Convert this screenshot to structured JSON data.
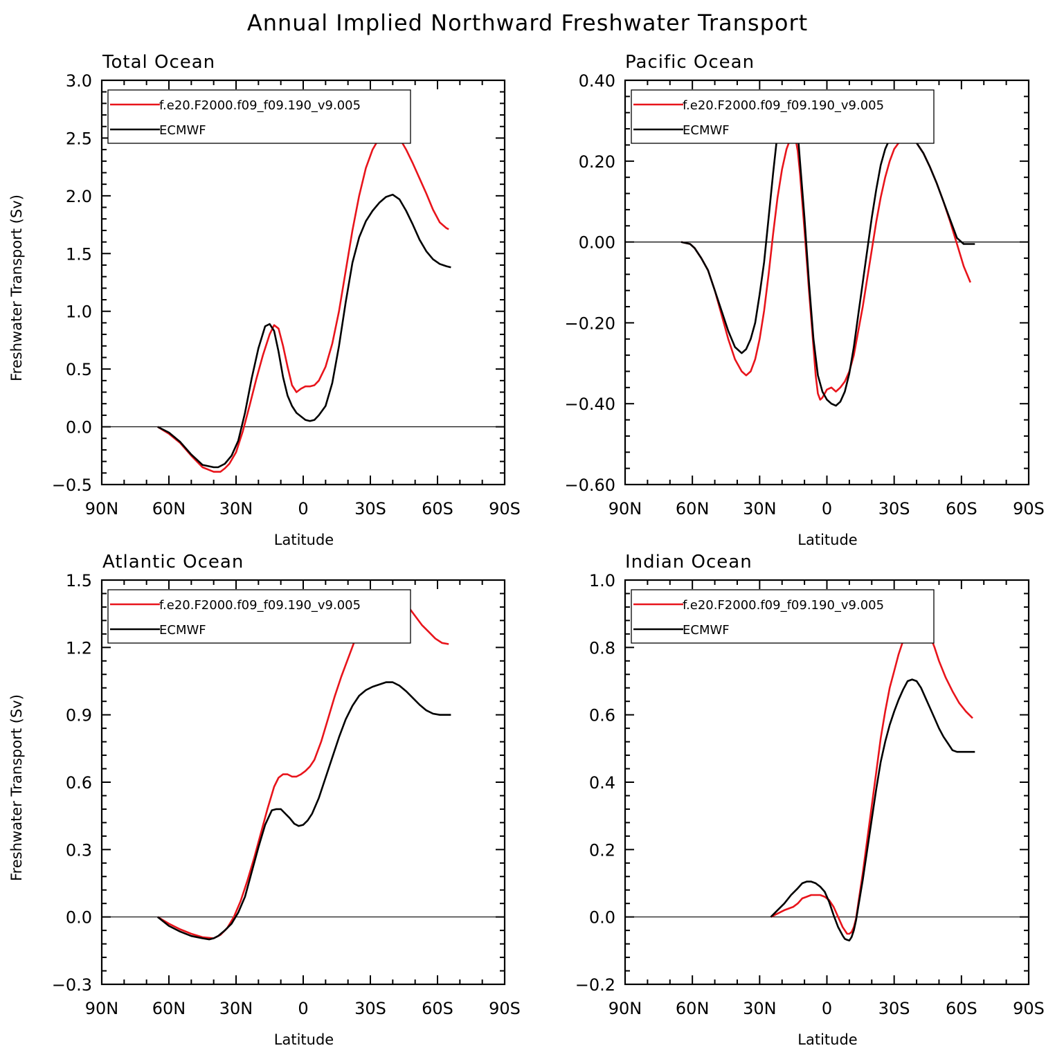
{
  "figure": {
    "title": "Annual Implied Northward Freshwater Transport",
    "legend": [
      "f.e20.F2000.f09_f09.190_v9.005",
      "ECMWF"
    ],
    "colors": {
      "model": "#e8141b",
      "ecmwf": "#000000",
      "axes": "#000000"
    }
  },
  "chart_data": [
    {
      "type": "line",
      "title": "Total Ocean",
      "xlabel": "Latitude",
      "ylabel": "Freshwater Transport (Sv)",
      "xlim": [
        -90,
        90
      ],
      "ylim": [
        -0.5,
        3.0
      ],
      "xticks": [
        -90,
        -60,
        -30,
        0,
        30,
        60,
        90
      ],
      "xtick_labels": [
        "90N",
        "60N",
        "30N",
        "0",
        "30S",
        "60S",
        "90S"
      ],
      "yticks": [
        -0.5,
        0.0,
        0.5,
        1.0,
        1.5,
        2.0,
        2.5,
        3.0
      ],
      "ytick_labels": [
        "−0.5",
        "0.0",
        "0.5",
        "1.0",
        "1.5",
        "2.0",
        "2.5",
        "3.0"
      ],
      "legend_position": "top-left",
      "series": [
        {
          "name": "f.e20.F2000.f09_f09.190_v9.005",
          "color": "#e8141b",
          "x": [
            -65,
            -60,
            -55,
            -50,
            -45,
            -40,
            -37,
            -35,
            -33,
            -30,
            -27,
            -24,
            -21,
            -18,
            -15,
            -13,
            -11,
            -9,
            -7,
            -5,
            -3,
            -1,
            1,
            3,
            5,
            7,
            10,
            13,
            16,
            19,
            22,
            25,
            28,
            31,
            34,
            37,
            40,
            43,
            46,
            49,
            52,
            55,
            58,
            61,
            64,
            65
          ],
          "y": [
            0.0,
            -0.06,
            -0.14,
            -0.25,
            -0.35,
            -0.39,
            -0.39,
            -0.36,
            -0.32,
            -0.22,
            -0.04,
            0.18,
            0.41,
            0.62,
            0.8,
            0.88,
            0.85,
            0.7,
            0.52,
            0.36,
            0.3,
            0.33,
            0.35,
            0.35,
            0.36,
            0.4,
            0.52,
            0.72,
            1.0,
            1.35,
            1.7,
            2.0,
            2.24,
            2.4,
            2.5,
            2.54,
            2.55,
            2.5,
            2.4,
            2.28,
            2.15,
            2.02,
            1.88,
            1.77,
            1.72,
            1.71
          ]
        },
        {
          "name": "ECMWF",
          "color": "#000000",
          "x": [
            -65,
            -60,
            -55,
            -50,
            -45,
            -40,
            -38,
            -35,
            -32,
            -29,
            -26,
            -23,
            -20,
            -17,
            -15,
            -13,
            -11,
            -9,
            -7,
            -5,
            -3,
            -1,
            1,
            3,
            5,
            7,
            10,
            13,
            16,
            19,
            22,
            25,
            28,
            31,
            34,
            37,
            40,
            43,
            46,
            49,
            52,
            55,
            58,
            61,
            64,
            66
          ],
          "y": [
            0.0,
            -0.05,
            -0.13,
            -0.24,
            -0.33,
            -0.35,
            -0.35,
            -0.32,
            -0.25,
            -0.12,
            0.12,
            0.42,
            0.68,
            0.87,
            0.89,
            0.83,
            0.65,
            0.43,
            0.27,
            0.18,
            0.12,
            0.09,
            0.06,
            0.05,
            0.06,
            0.1,
            0.18,
            0.38,
            0.7,
            1.08,
            1.42,
            1.64,
            1.78,
            1.87,
            1.94,
            1.99,
            2.01,
            1.97,
            1.87,
            1.75,
            1.62,
            1.52,
            1.45,
            1.41,
            1.39,
            1.38
          ]
        }
      ]
    },
    {
      "type": "line",
      "title": "Pacific Ocean",
      "xlabel": "Latitude",
      "ylabel": "",
      "xlim": [
        -90,
        90
      ],
      "ylim": [
        -0.6,
        0.4
      ],
      "xticks": [
        -90,
        -60,
        -30,
        0,
        30,
        60,
        90
      ],
      "xtick_labels": [
        "90N",
        "60N",
        "30N",
        "0",
        "30S",
        "60S",
        "90S"
      ],
      "yticks": [
        -0.6,
        -0.4,
        -0.2,
        0.0,
        0.2,
        0.4
      ],
      "ytick_labels": [
        "−0.60",
        "−0.40",
        "−0.20",
        "0.00",
        "0.20",
        "0.40"
      ],
      "legend_position": "top-left",
      "series": [
        {
          "name": "f.e20.F2000.f09_f09.190_v9.005",
          "color": "#e8141b",
          "x": [
            -65,
            -61,
            -59,
            -56,
            -53,
            -50,
            -47,
            -44,
            -41,
            -38,
            -36,
            -34,
            -32,
            -30,
            -28,
            -26,
            -24,
            -22,
            -20,
            -18,
            -16,
            -15,
            -14,
            -13,
            -12,
            -10,
            -8,
            -6,
            -5,
            -4,
            -3,
            -2,
            -1,
            0,
            2,
            4,
            6,
            8,
            10,
            12,
            14,
            16,
            18,
            20,
            22,
            24,
            26,
            28,
            30,
            32,
            34,
            37,
            40,
            43,
            46,
            49,
            52,
            55,
            58,
            61,
            64
          ],
          "y": [
            0.0,
            -0.005,
            -0.015,
            -0.04,
            -0.07,
            -0.12,
            -0.18,
            -0.24,
            -0.29,
            -0.32,
            -0.33,
            -0.32,
            -0.29,
            -0.24,
            -0.17,
            -0.08,
            0.02,
            0.11,
            0.18,
            0.23,
            0.26,
            0.265,
            0.255,
            0.225,
            0.17,
            0.03,
            -0.12,
            -0.26,
            -0.33,
            -0.375,
            -0.39,
            -0.385,
            -0.375,
            -0.365,
            -0.36,
            -0.37,
            -0.36,
            -0.345,
            -0.32,
            -0.28,
            -0.22,
            -0.16,
            -0.09,
            -0.02,
            0.05,
            0.11,
            0.16,
            0.2,
            0.23,
            0.245,
            0.255,
            0.255,
            0.245,
            0.22,
            0.185,
            0.145,
            0.1,
            0.05,
            -0.005,
            -0.06,
            -0.1
          ]
        },
        {
          "name": "ECMWF",
          "color": "#000000",
          "x": [
            -65,
            -61,
            -59,
            -56,
            -53,
            -50,
            -47,
            -44,
            -41,
            -38,
            -36,
            -34,
            -32,
            -30,
            -28,
            -26,
            -24,
            -22,
            -20,
            -18,
            -16,
            -15,
            -14,
            -13,
            -12,
            -10,
            -8,
            -6,
            -4,
            -2,
            0,
            2,
            4,
            6,
            8,
            10,
            12,
            14,
            16,
            18,
            20,
            22,
            24,
            26,
            28,
            30,
            32,
            34,
            37,
            40,
            43,
            46,
            49,
            52,
            55,
            58,
            61,
            64,
            66
          ],
          "y": [
            0.0,
            -0.005,
            -0.015,
            -0.04,
            -0.07,
            -0.12,
            -0.17,
            -0.22,
            -0.26,
            -0.275,
            -0.265,
            -0.24,
            -0.2,
            -0.13,
            -0.05,
            0.06,
            0.17,
            0.27,
            0.33,
            0.365,
            0.375,
            0.36,
            0.33,
            0.27,
            0.2,
            0.06,
            -0.1,
            -0.24,
            -0.33,
            -0.37,
            -0.39,
            -0.4,
            -0.405,
            -0.395,
            -0.37,
            -0.325,
            -0.26,
            -0.18,
            -0.1,
            -0.02,
            0.06,
            0.13,
            0.19,
            0.23,
            0.255,
            0.265,
            0.27,
            0.27,
            0.26,
            0.245,
            0.22,
            0.185,
            0.145,
            0.1,
            0.055,
            0.01,
            -0.005,
            -0.005,
            -0.005
          ]
        }
      ]
    },
    {
      "type": "line",
      "title": "Atlantic Ocean",
      "xlabel": "Latitude",
      "ylabel": "Freshwater Transport (Sv)",
      "xlim": [
        -90,
        90
      ],
      "ylim": [
        -0.3,
        1.5
      ],
      "xticks": [
        -90,
        -60,
        -30,
        0,
        30,
        60,
        90
      ],
      "xtick_labels": [
        "90N",
        "60N",
        "30N",
        "0",
        "30S",
        "60S",
        "90S"
      ],
      "yticks": [
        -0.3,
        0.0,
        0.3,
        0.6,
        0.9,
        1.2,
        1.5
      ],
      "ytick_labels": [
        "−0.3",
        "0.0",
        "0.3",
        "0.6",
        "0.9",
        "1.2",
        "1.5"
      ],
      "legend_position": "top-left",
      "series": [
        {
          "name": "f.e20.F2000.f09_f09.190_v9.005",
          "color": "#e8141b",
          "x": [
            -65,
            -60,
            -55,
            -50,
            -45,
            -40,
            -37,
            -34,
            -31,
            -28,
            -25,
            -22,
            -19,
            -16,
            -13,
            -11,
            -9,
            -7,
            -5,
            -3,
            -1,
            1,
            3,
            5,
            8,
            11,
            14,
            17,
            20,
            23,
            26,
            29,
            32,
            35,
            38,
            41,
            44,
            47,
            50,
            53,
            56,
            59,
            62,
            65
          ],
          "y": [
            0.0,
            -0.03,
            -0.055,
            -0.075,
            -0.09,
            -0.095,
            -0.08,
            -0.05,
            0.0,
            0.07,
            0.16,
            0.26,
            0.37,
            0.48,
            0.58,
            0.62,
            0.635,
            0.635,
            0.625,
            0.625,
            0.635,
            0.65,
            0.67,
            0.7,
            0.78,
            0.88,
            0.98,
            1.07,
            1.15,
            1.23,
            1.3,
            1.35,
            1.385,
            1.405,
            1.42,
            1.425,
            1.41,
            1.38,
            1.34,
            1.3,
            1.27,
            1.24,
            1.22,
            1.215
          ]
        },
        {
          "name": "ECMWF",
          "color": "#000000",
          "x": [
            -65,
            -60,
            -55,
            -50,
            -45,
            -42,
            -40,
            -38,
            -35,
            -32,
            -29,
            -26,
            -23,
            -20,
            -17,
            -14,
            -12,
            -10,
            -8,
            -6,
            -4,
            -2,
            0,
            2,
            4,
            7,
            10,
            13,
            16,
            19,
            22,
            25,
            28,
            31,
            34,
            37,
            40,
            43,
            46,
            49,
            52,
            55,
            58,
            61,
            64,
            66
          ],
          "y": [
            0.0,
            -0.04,
            -0.065,
            -0.085,
            -0.095,
            -0.1,
            -0.095,
            -0.085,
            -0.06,
            -0.03,
            0.02,
            0.09,
            0.2,
            0.31,
            0.41,
            0.475,
            0.48,
            0.48,
            0.46,
            0.44,
            0.415,
            0.405,
            0.41,
            0.43,
            0.46,
            0.53,
            0.62,
            0.71,
            0.8,
            0.88,
            0.94,
            0.985,
            1.01,
            1.025,
            1.035,
            1.045,
            1.045,
            1.03,
            1.005,
            0.975,
            0.945,
            0.92,
            0.905,
            0.9,
            0.9,
            0.9
          ]
        }
      ]
    },
    {
      "type": "line",
      "title": "Indian Ocean",
      "xlabel": "Latitude",
      "ylabel": "",
      "xlim": [
        -90,
        90
      ],
      "ylim": [
        -0.2,
        1.0
      ],
      "xticks": [
        -90,
        -60,
        -30,
        0,
        30,
        60,
        90
      ],
      "xtick_labels": [
        "90N",
        "60N",
        "30N",
        "0",
        "30S",
        "60S",
        "90S"
      ],
      "yticks": [
        -0.2,
        0.0,
        0.2,
        0.4,
        0.6,
        0.8,
        1.0
      ],
      "ytick_labels": [
        "−0.2",
        "0.0",
        "0.2",
        "0.4",
        "0.6",
        "0.8",
        "1.0"
      ],
      "legend_position": "top-left",
      "series": [
        {
          "name": "f.e20.F2000.f09_f09.190_v9.005",
          "color": "#e8141b",
          "x": [
            -25,
            -22,
            -19,
            -17,
            -15,
            -13,
            -11,
            -9,
            -7,
            -5,
            -3,
            -1,
            1,
            3,
            5,
            7,
            9,
            10,
            11,
            12,
            13,
            14,
            16,
            18,
            20,
            22,
            24,
            26,
            28,
            30,
            32,
            34,
            36,
            38,
            40,
            42,
            44,
            46,
            48,
            50,
            53,
            56,
            59,
            62,
            65
          ],
          "y": [
            0.0,
            0.01,
            0.02,
            0.025,
            0.03,
            0.04,
            0.055,
            0.06,
            0.065,
            0.065,
            0.065,
            0.06,
            0.05,
            0.03,
            0.0,
            -0.03,
            -0.05,
            -0.05,
            -0.045,
            -0.03,
            -0.005,
            0.04,
            0.13,
            0.23,
            0.33,
            0.43,
            0.53,
            0.61,
            0.68,
            0.73,
            0.78,
            0.82,
            0.85,
            0.87,
            0.88,
            0.875,
            0.86,
            0.835,
            0.8,
            0.76,
            0.71,
            0.67,
            0.635,
            0.61,
            0.59
          ]
        },
        {
          "name": "ECMWF",
          "color": "#000000",
          "x": [
            -25,
            -22,
            -19,
            -16,
            -13,
            -11,
            -9,
            -7,
            -5,
            -3,
            -1,
            1,
            3,
            5,
            7,
            8,
            9,
            10,
            11,
            12,
            13,
            14,
            16,
            18,
            20,
            22,
            24,
            26,
            28,
            30,
            32,
            34,
            36,
            38,
            40,
            42,
            44,
            46,
            48,
            50,
            52,
            54,
            56,
            58,
            60,
            62,
            64,
            66
          ],
          "y": [
            0.0,
            0.02,
            0.04,
            0.065,
            0.085,
            0.1,
            0.105,
            0.105,
            0.1,
            0.09,
            0.075,
            0.045,
            0.005,
            -0.03,
            -0.055,
            -0.065,
            -0.068,
            -0.07,
            -0.06,
            -0.04,
            -0.01,
            0.03,
            0.11,
            0.2,
            0.29,
            0.38,
            0.46,
            0.52,
            0.57,
            0.61,
            0.645,
            0.675,
            0.7,
            0.705,
            0.7,
            0.68,
            0.65,
            0.62,
            0.59,
            0.56,
            0.535,
            0.515,
            0.495,
            0.49,
            0.49,
            0.49,
            0.49,
            0.49
          ]
        }
      ]
    }
  ]
}
